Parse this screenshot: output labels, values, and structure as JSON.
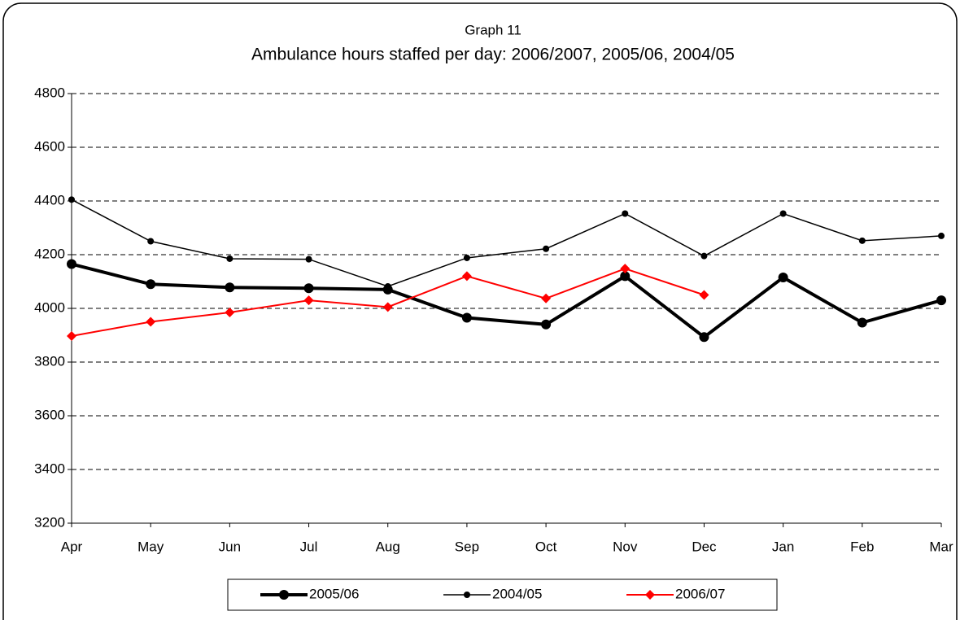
{
  "chart_data": {
    "type": "line",
    "subtitle": "Graph 11",
    "title": "Ambulance hours staffed per day: 2006/2007, 2005/06, 2004/05",
    "categories": [
      "Apr",
      "May",
      "Jun",
      "Jul",
      "Aug",
      "Sep",
      "Oct",
      "Nov",
      "Dec",
      "Jan",
      "Feb",
      "Mar"
    ],
    "series": [
      {
        "name": "2005/06",
        "color": "#000000",
        "line_width": 4,
        "marker": "circle",
        "marker_size": 6,
        "values": [
          4165,
          4090,
          4078,
          4075,
          4070,
          3965,
          3940,
          4120,
          3893,
          4115,
          3947,
          4030
        ]
      },
      {
        "name": "2004/05",
        "color": "#000000",
        "line_width": 1.5,
        "marker": "circle",
        "marker_size": 4,
        "values": [
          4405,
          4250,
          4185,
          4183,
          4082,
          4188,
          4222,
          4353,
          4195,
          4353,
          4252,
          4270
        ]
      },
      {
        "name": "2006/07",
        "color": "#ff0000",
        "line_width": 2,
        "marker": "diamond",
        "marker_size": 6,
        "values": [
          3897,
          3950,
          3985,
          4030,
          4005,
          4120,
          4037,
          4148,
          4050,
          null,
          null,
          null
        ]
      }
    ],
    "ylim": [
      3200,
      4800
    ],
    "yticks": [
      3200,
      3400,
      3600,
      3800,
      4000,
      4200,
      4400,
      4600,
      4800
    ],
    "grid": true,
    "legend": "bottom"
  }
}
